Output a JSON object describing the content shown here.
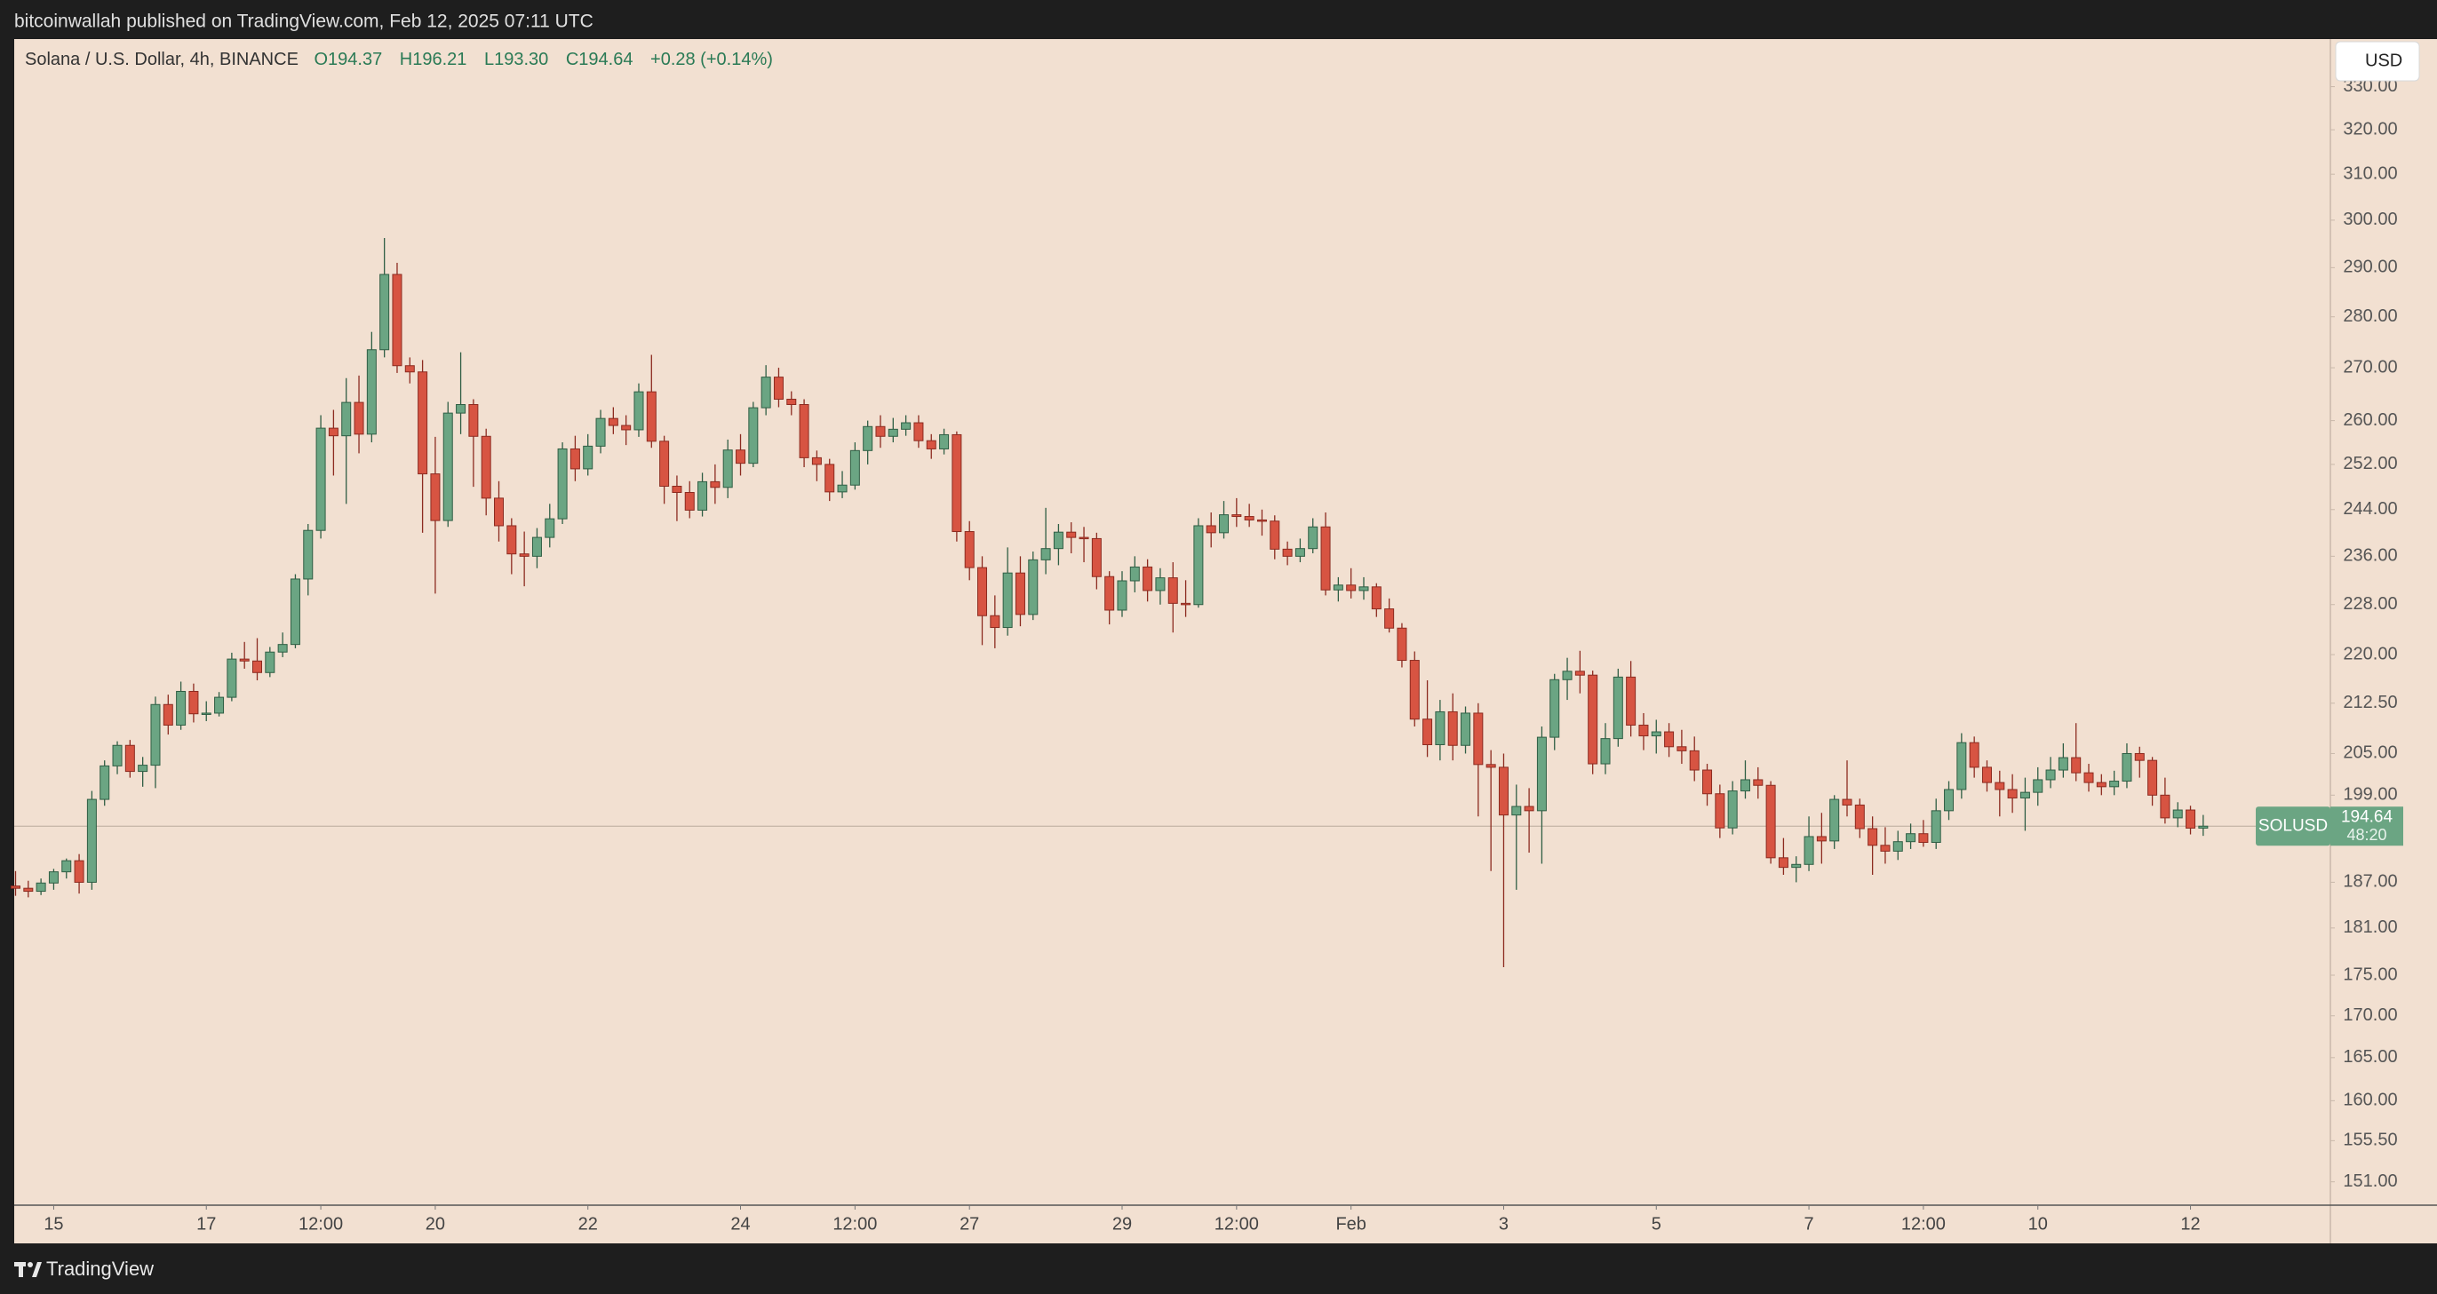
{
  "top_bar": {
    "text": "bitcoinwallah published on TradingView.com, Feb 12, 2025 07:11 UTC"
  },
  "footer": {
    "brand": "TradingView"
  },
  "currency_button": "USD",
  "legend": {
    "symbol": "Solana / U.S. Dollar, 4h, BINANCE",
    "open": "O194.37",
    "high": "H196.21",
    "low": "L193.30",
    "close": "C194.64",
    "change": "+0.28 (+0.14%)"
  },
  "price_label": {
    "symbol": "SOLUSD",
    "countdown": "48:20"
  },
  "chart_data": {
    "type": "candlestick",
    "log_scale": true,
    "grid": false,
    "up_color": "#6ba583",
    "down_color": "#d75442",
    "up_border": "#2f5e44",
    "down_border": "#8c2b20",
    "ylim": [
      148.5,
      341.4
    ],
    "yticks": [
      {
        "value": 151,
        "label": "151.00"
      },
      {
        "value": 155.5,
        "label": "155.50"
      },
      {
        "value": 160,
        "label": "160.00"
      },
      {
        "value": 165,
        "label": "165.00"
      },
      {
        "value": 170,
        "label": "170.00"
      },
      {
        "value": 175,
        "label": "175.00"
      },
      {
        "value": 181,
        "label": "181.00"
      },
      {
        "value": 187,
        "label": "187.00"
      },
      {
        "value": 199,
        "label": "199.00"
      },
      {
        "value": 205,
        "label": "205.00"
      },
      {
        "value": 212.5,
        "label": "212.50"
      },
      {
        "value": 220,
        "label": "220.00"
      },
      {
        "value": 228,
        "label": "228.00"
      },
      {
        "value": 236,
        "label": "236.00"
      },
      {
        "value": 244,
        "label": "244.00"
      },
      {
        "value": 252,
        "label": "252.00"
      },
      {
        "value": 260,
        "label": "260.00"
      },
      {
        "value": 270,
        "label": "270.00"
      },
      {
        "value": 280,
        "label": "280.00"
      },
      {
        "value": 290,
        "label": "290.00"
      },
      {
        "value": 300,
        "label": "300.00"
      },
      {
        "value": 310,
        "label": "310.00"
      },
      {
        "value": 320,
        "label": "320.00"
      },
      {
        "value": 330,
        "label": "330.00"
      }
    ],
    "xticks": [
      {
        "value": 3,
        "label": "15"
      },
      {
        "value": 15,
        "label": "17"
      },
      {
        "value": 24,
        "label": "12:00"
      },
      {
        "value": 33,
        "label": "20"
      },
      {
        "value": 45,
        "label": "22"
      },
      {
        "value": 57,
        "label": "24"
      },
      {
        "value": 66,
        "label": "12:00"
      },
      {
        "value": 75,
        "label": "27"
      },
      {
        "value": 87,
        "label": "29"
      },
      {
        "value": 96,
        "label": "12:00"
      },
      {
        "value": 105,
        "label": "Feb"
      },
      {
        "value": 117,
        "label": "3"
      },
      {
        "value": 129,
        "label": "5"
      },
      {
        "value": 141,
        "label": "7"
      },
      {
        "value": 150,
        "label": "12:00"
      },
      {
        "value": 159,
        "label": "10"
      },
      {
        "value": 171,
        "label": "12"
      }
    ],
    "ohlc": [
      [
        186.5,
        188.5,
        185.2,
        186.2
      ],
      [
        186.2,
        187.2,
        185.0,
        185.8
      ],
      [
        185.8,
        187.5,
        185.3,
        186.9
      ],
      [
        186.9,
        188.8,
        186.0,
        188.4
      ],
      [
        188.4,
        190.2,
        187.5,
        189.9
      ],
      [
        189.9,
        190.8,
        185.5,
        187.0
      ],
      [
        187.0,
        199.6,
        186.0,
        198.4
      ],
      [
        198.4,
        204.0,
        197.5,
        203.2
      ],
      [
        203.2,
        206.8,
        202.0,
        206.2
      ],
      [
        206.2,
        207.0,
        201.5,
        202.4
      ],
      [
        202.4,
        204.5,
        200.2,
        203.3
      ],
      [
        203.3,
        213.5,
        200.0,
        212.3
      ],
      [
        212.3,
        213.8,
        207.8,
        209.2
      ],
      [
        209.2,
        215.8,
        208.5,
        214.3
      ],
      [
        214.3,
        215.5,
        209.6,
        210.9
      ],
      [
        210.9,
        212.8,
        209.8,
        211.0
      ],
      [
        211.0,
        214.2,
        210.5,
        213.4
      ],
      [
        213.4,
        220.3,
        212.8,
        219.3
      ],
      [
        219.3,
        222.0,
        217.8,
        219.0
      ],
      [
        219.0,
        222.6,
        216.0,
        217.2
      ],
      [
        217.2,
        221.2,
        216.5,
        220.4
      ],
      [
        220.4,
        223.5,
        219.6,
        221.6
      ],
      [
        221.6,
        233.0,
        221.0,
        232.2
      ],
      [
        232.2,
        241.5,
        229.5,
        240.4
      ],
      [
        240.4,
        261.0,
        239.0,
        258.6
      ],
      [
        258.6,
        262.0,
        250.0,
        257.2
      ],
      [
        257.2,
        268.0,
        245.0,
        263.4
      ],
      [
        263.4,
        268.5,
        254.0,
        257.5
      ],
      [
        257.5,
        277.0,
        256.0,
        273.5
      ],
      [
        273.5,
        296.2,
        272.0,
        288.6
      ],
      [
        288.6,
        291.0,
        269.0,
        270.4
      ],
      [
        270.4,
        272.0,
        267.0,
        269.2
      ],
      [
        269.2,
        271.5,
        240.0,
        250.3
      ],
      [
        250.3,
        257.0,
        229.8,
        242.1
      ],
      [
        242.1,
        263.5,
        241.0,
        261.4
      ],
      [
        261.4,
        273.0,
        257.5,
        263.0
      ],
      [
        263.0,
        264.0,
        248.0,
        257.1
      ],
      [
        257.1,
        258.5,
        243.0,
        246.0
      ],
      [
        246.0,
        249.0,
        238.5,
        241.2
      ],
      [
        241.2,
        242.5,
        233.0,
        236.4
      ],
      [
        236.4,
        240.2,
        231.0,
        236.0
      ],
      [
        236.0,
        240.8,
        234.0,
        239.2
      ],
      [
        239.2,
        245.0,
        237.5,
        242.4
      ],
      [
        242.4,
        256.0,
        241.5,
        254.8
      ],
      [
        254.8,
        257.2,
        249.0,
        251.2
      ],
      [
        251.2,
        257.5,
        250.0,
        255.3
      ],
      [
        255.3,
        262.0,
        254.0,
        260.4
      ],
      [
        260.4,
        262.5,
        257.5,
        259.1
      ],
      [
        259.1,
        261.0,
        255.5,
        258.3
      ],
      [
        258.3,
        267.0,
        257.0,
        265.4
      ],
      [
        265.4,
        272.5,
        255.0,
        256.2
      ],
      [
        256.2,
        257.2,
        245.0,
        248.1
      ],
      [
        248.1,
        250.0,
        242.0,
        247.0
      ],
      [
        247.0,
        249.0,
        242.5,
        243.9
      ],
      [
        243.9,
        250.5,
        242.8,
        248.9
      ],
      [
        248.9,
        252.0,
        245.0,
        247.9
      ],
      [
        247.9,
        256.5,
        246.0,
        254.6
      ],
      [
        254.6,
        257.5,
        250.0,
        252.2
      ],
      [
        252.2,
        263.5,
        251.5,
        262.4
      ],
      [
        262.4,
        270.5,
        261.0,
        268.2
      ],
      [
        268.2,
        270.0,
        262.5,
        264.0
      ],
      [
        264.0,
        265.5,
        261.0,
        263.0
      ],
      [
        263.0,
        264.0,
        251.5,
        253.2
      ],
      [
        253.2,
        254.5,
        249.0,
        252.0
      ],
      [
        252.0,
        253.0,
        245.5,
        247.1
      ],
      [
        247.1,
        250.8,
        246.0,
        248.3
      ],
      [
        248.3,
        256.0,
        247.5,
        254.5
      ],
      [
        254.5,
        260.0,
        252.0,
        258.9
      ],
      [
        258.9,
        261.0,
        255.0,
        257.1
      ],
      [
        257.1,
        260.5,
        256.0,
        258.4
      ],
      [
        258.4,
        261.0,
        257.2,
        259.6
      ],
      [
        259.6,
        261.0,
        255.0,
        256.3
      ],
      [
        256.3,
        257.5,
        253.0,
        254.8
      ],
      [
        254.8,
        258.5,
        253.8,
        257.4
      ],
      [
        257.4,
        258.0,
        238.5,
        240.2
      ],
      [
        240.2,
        242.0,
        232.0,
        234.1
      ],
      [
        234.1,
        236.0,
        221.5,
        226.2
      ],
      [
        226.2,
        229.5,
        221.0,
        224.3
      ],
      [
        224.3,
        237.5,
        223.0,
        233.2
      ],
      [
        233.2,
        236.0,
        224.5,
        226.4
      ],
      [
        226.4,
        236.8,
        225.5,
        235.4
      ],
      [
        235.4,
        244.3,
        233.0,
        237.3
      ],
      [
        237.3,
        241.5,
        234.5,
        240.1
      ],
      [
        240.1,
        241.8,
        236.5,
        239.2
      ],
      [
        239.2,
        241.0,
        235.0,
        239.0
      ],
      [
        239.0,
        240.0,
        230.5,
        232.6
      ],
      [
        232.6,
        233.5,
        224.8,
        227.1
      ],
      [
        227.1,
        233.5,
        226.0,
        231.9
      ],
      [
        231.9,
        236.0,
        230.0,
        234.2
      ],
      [
        234.2,
        235.5,
        228.5,
        230.3
      ],
      [
        230.3,
        234.0,
        228.0,
        232.4
      ],
      [
        232.4,
        235.0,
        223.5,
        228.2
      ],
      [
        228.2,
        232.0,
        226.0,
        228.0
      ],
      [
        228.0,
        242.5,
        227.5,
        241.2
      ],
      [
        241.2,
        243.5,
        237.5,
        240.0
      ],
      [
        240.0,
        245.5,
        239.0,
        243.1
      ],
      [
        243.1,
        246.0,
        241.0,
        242.8
      ],
      [
        242.8,
        245.0,
        241.0,
        242.2
      ],
      [
        242.2,
        244.0,
        239.5,
        242.0
      ],
      [
        242.0,
        243.0,
        235.5,
        237.2
      ],
      [
        237.2,
        238.5,
        234.5,
        236.0
      ],
      [
        236.0,
        239.0,
        235.0,
        237.3
      ],
      [
        237.3,
        242.5,
        236.5,
        241.0
      ],
      [
        241.0,
        243.5,
        229.5,
        230.4
      ],
      [
        230.4,
        232.5,
        228.5,
        231.2
      ],
      [
        231.2,
        234.0,
        229.0,
        230.3
      ],
      [
        230.3,
        232.5,
        228.8,
        230.9
      ],
      [
        230.9,
        231.5,
        226.0,
        227.3
      ],
      [
        227.3,
        229.0,
        223.5,
        224.2
      ],
      [
        224.2,
        225.0,
        218.0,
        219.1
      ],
      [
        219.1,
        220.5,
        209.0,
        210.1
      ],
      [
        210.1,
        216.0,
        204.5,
        206.3
      ],
      [
        206.3,
        213.0,
        204.0,
        211.2
      ],
      [
        211.2,
        214.0,
        204.0,
        206.2
      ],
      [
        206.2,
        212.0,
        205.0,
        211.0
      ],
      [
        211.0,
        212.5,
        196.0,
        203.4
      ],
      [
        203.4,
        205.5,
        188.5,
        203.0
      ],
      [
        203.0,
        205.0,
        176.0,
        196.2
      ],
      [
        196.2,
        200.5,
        186.0,
        197.4
      ],
      [
        197.4,
        200.0,
        191.0,
        196.8
      ],
      [
        196.8,
        209.0,
        189.5,
        207.4
      ],
      [
        207.4,
        217.0,
        205.5,
        216.1
      ],
      [
        216.1,
        219.5,
        213.0,
        217.4
      ],
      [
        217.4,
        220.6,
        214.0,
        216.8
      ],
      [
        216.8,
        217.5,
        202.0,
        203.5
      ],
      [
        203.5,
        209.5,
        202.0,
        207.2
      ],
      [
        207.2,
        217.8,
        206.0,
        216.5
      ],
      [
        216.5,
        219.0,
        207.5,
        209.2
      ],
      [
        209.2,
        211.0,
        205.5,
        207.6
      ],
      [
        207.6,
        210.0,
        205.0,
        208.2
      ],
      [
        208.2,
        209.5,
        204.5,
        206.0
      ],
      [
        206.0,
        208.5,
        203.5,
        205.4
      ],
      [
        205.4,
        207.5,
        201.0,
        202.6
      ],
      [
        202.6,
        203.5,
        197.5,
        199.2
      ],
      [
        199.2,
        200.5,
        193.0,
        194.4
      ],
      [
        194.4,
        201.0,
        193.5,
        199.6
      ],
      [
        199.6,
        204.0,
        198.5,
        201.2
      ],
      [
        201.2,
        203.0,
        198.5,
        200.4
      ],
      [
        200.4,
        201.0,
        189.5,
        190.3
      ],
      [
        190.3,
        193.0,
        188.0,
        189.0
      ],
      [
        189.0,
        190.5,
        187.0,
        189.4
      ],
      [
        189.4,
        196.0,
        188.5,
        193.2
      ],
      [
        193.2,
        196.5,
        189.5,
        192.6
      ],
      [
        192.6,
        199.0,
        191.5,
        198.4
      ],
      [
        198.4,
        204.0,
        196.0,
        197.6
      ],
      [
        197.6,
        198.5,
        193.0,
        194.3
      ],
      [
        194.3,
        196.0,
        188.0,
        192.0
      ],
      [
        192.0,
        194.5,
        189.5,
        191.2
      ],
      [
        191.2,
        194.0,
        190.0,
        192.5
      ],
      [
        192.5,
        195.0,
        191.5,
        193.6
      ],
      [
        193.6,
        195.5,
        191.8,
        192.4
      ],
      [
        192.4,
        198.5,
        191.5,
        196.8
      ],
      [
        196.8,
        201.0,
        195.5,
        199.8
      ],
      [
        199.8,
        208.0,
        198.5,
        206.6
      ],
      [
        206.6,
        207.5,
        201.5,
        203.0
      ],
      [
        203.0,
        204.0,
        199.5,
        200.8
      ],
      [
        200.8,
        202.5,
        196.0,
        199.8
      ],
      [
        199.8,
        202.0,
        196.5,
        198.6
      ],
      [
        198.6,
        201.5,
        194.0,
        199.4
      ],
      [
        199.4,
        203.0,
        197.5,
        201.2
      ],
      [
        201.2,
        204.5,
        200.0,
        202.6
      ],
      [
        202.6,
        206.5,
        201.5,
        204.4
      ],
      [
        204.4,
        209.5,
        201.0,
        202.2
      ],
      [
        202.2,
        203.5,
        199.5,
        200.8
      ],
      [
        200.8,
        202.0,
        199.0,
        200.2
      ],
      [
        200.2,
        202.5,
        199.0,
        201.0
      ],
      [
        201.0,
        206.5,
        200.0,
        205.0
      ],
      [
        205.0,
        206.0,
        201.5,
        204.0
      ],
      [
        204.0,
        204.5,
        197.5,
        199.0
      ],
      [
        199.0,
        201.5,
        195.0,
        195.8
      ],
      [
        195.8,
        198.0,
        194.5,
        196.9
      ],
      [
        196.9,
        197.5,
        193.5,
        194.37
      ],
      [
        194.37,
        196.21,
        193.3,
        194.64
      ]
    ]
  }
}
